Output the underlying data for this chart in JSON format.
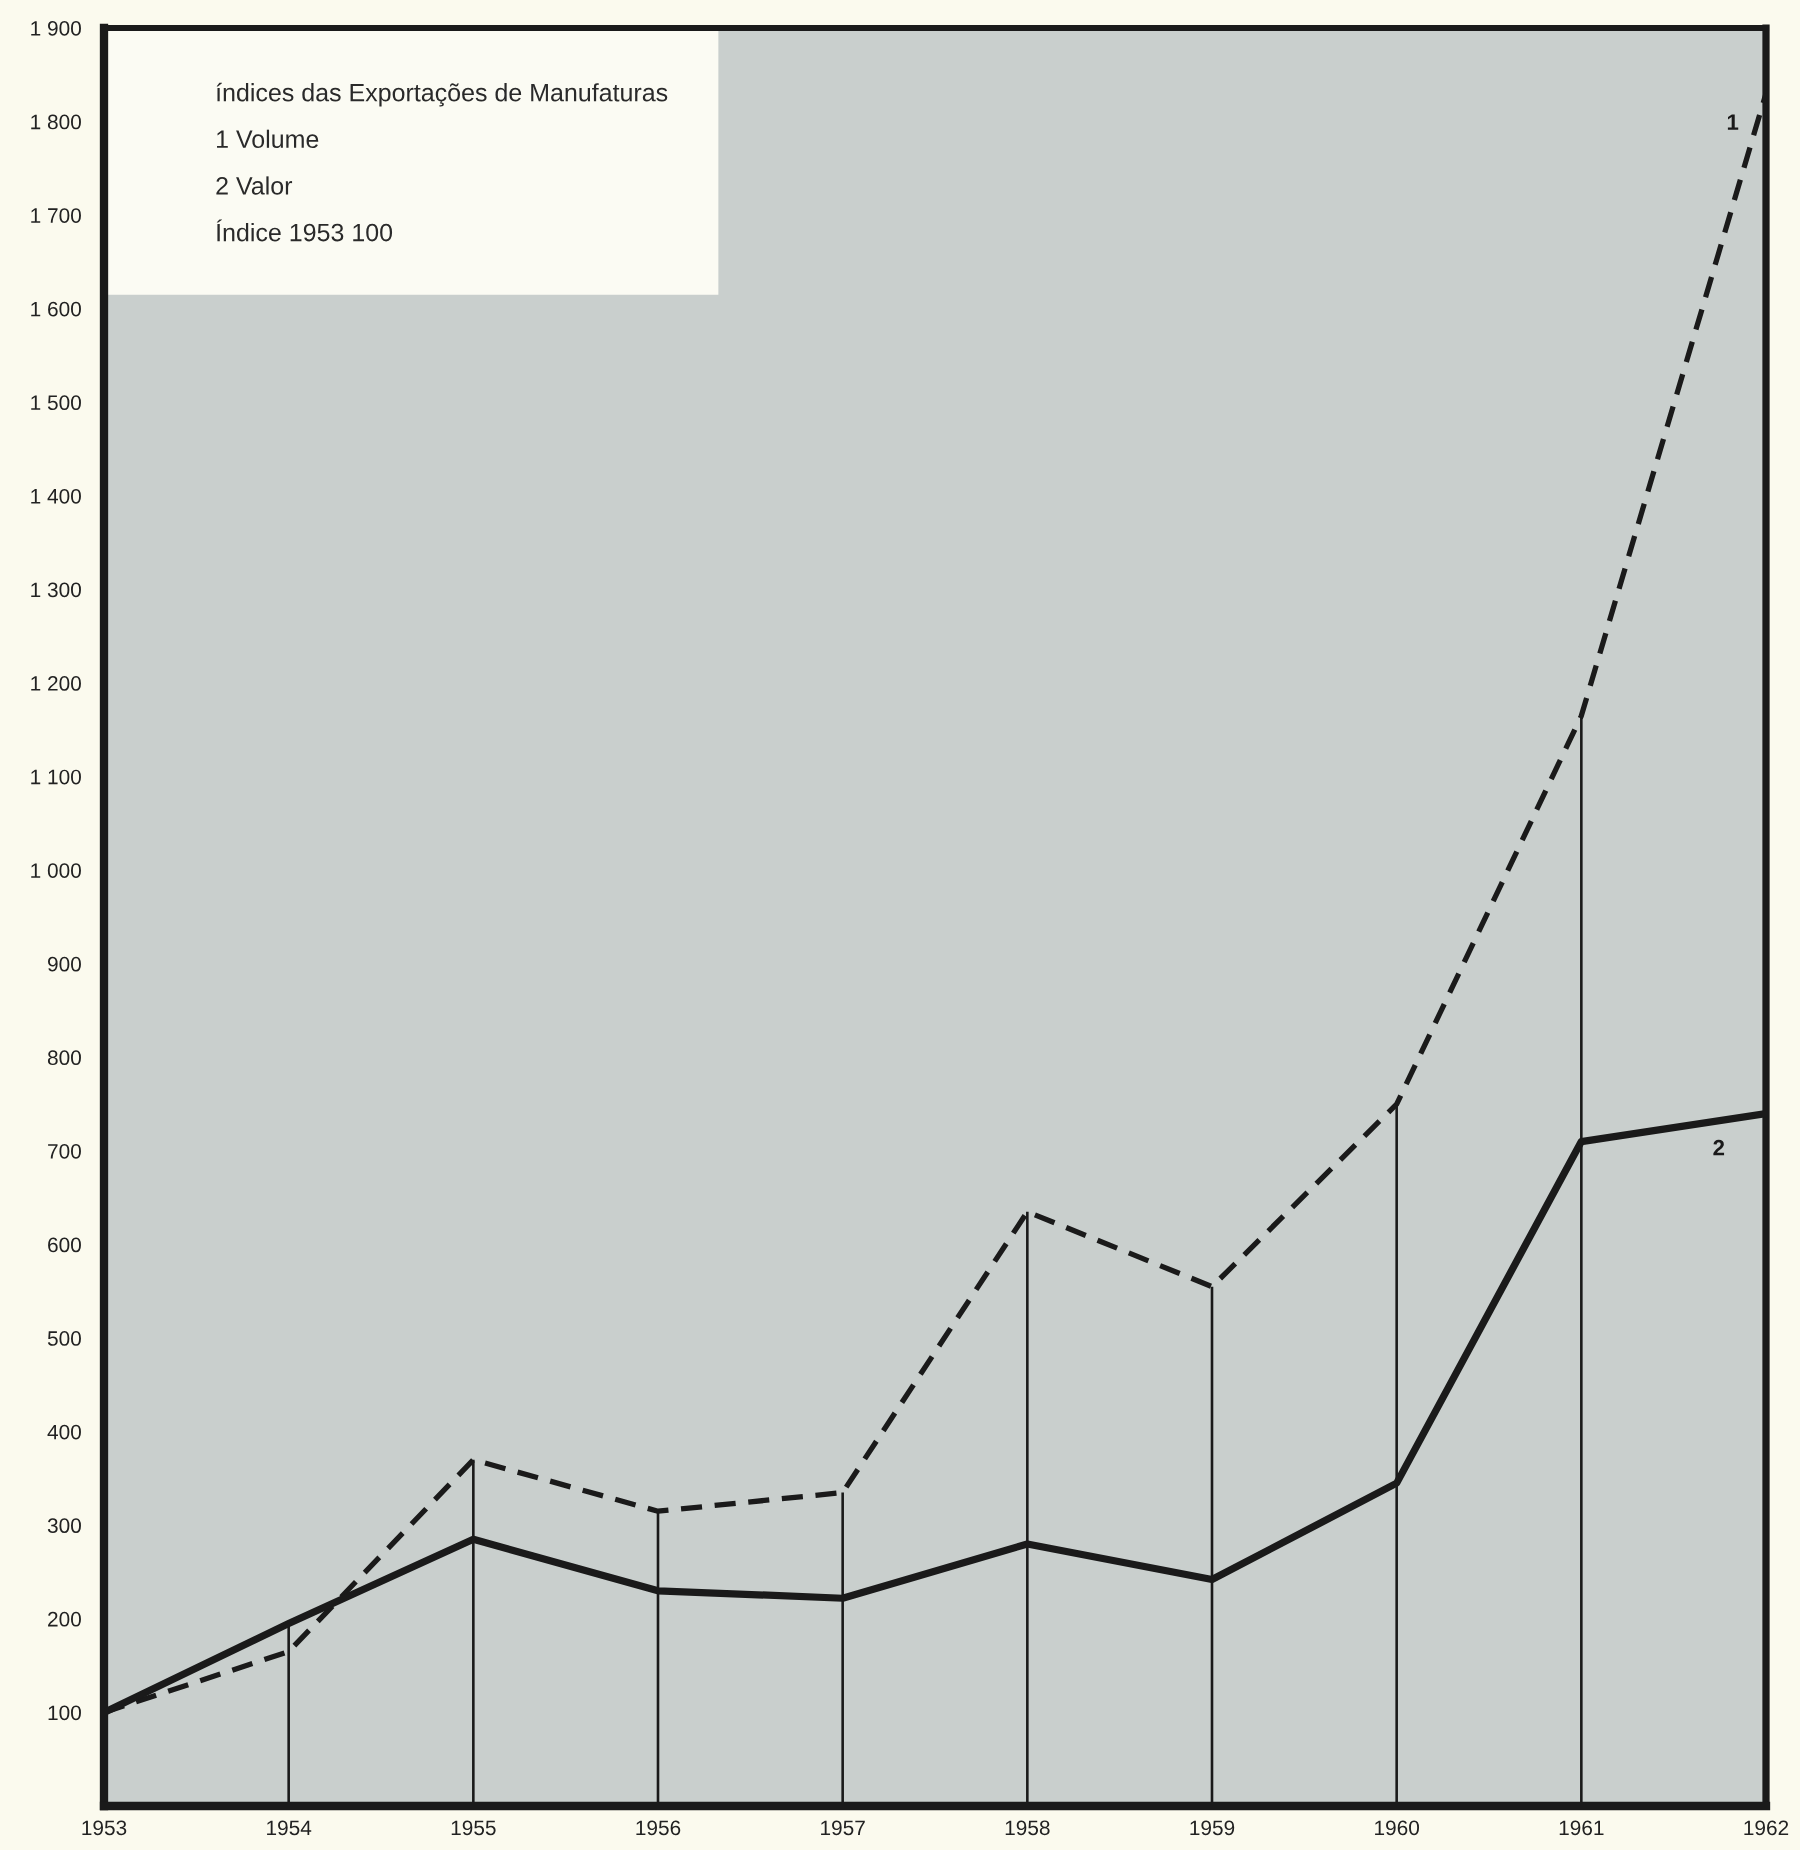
{
  "chart_data": {
    "type": "line",
    "x": [
      1953,
      1954,
      1955,
      1956,
      1957,
      1958,
      1959,
      1960,
      1961,
      1962
    ],
    "series": [
      {
        "name": "1",
        "color": "#1a1a1a",
        "line_style": "dashed",
        "values": [
          100,
          165,
          370,
          315,
          335,
          635,
          555,
          750,
          1165,
          1830
        ]
      },
      {
        "name": "2",
        "color": "#1a1a1a",
        "line_style": "solid",
        "values": [
          100,
          195,
          285,
          230,
          222,
          280,
          242,
          345,
          710,
          740
        ]
      },
      {
        "type": "bar",
        "color": "#1a1a1a",
        "x": [
          1954,
          1955,
          1956,
          1957,
          1958,
          1959,
          1960,
          1961
        ],
        "values": [
          195,
          370,
          315,
          335,
          635,
          555,
          750,
          1165
        ]
      }
    ],
    "xlim": [
      1953,
      1962
    ],
    "xticks": [
      1953,
      1954,
      1955,
      1956,
      1957,
      1958,
      1959,
      1960,
      1961,
      1962
    ],
    "ylim": [
      0,
      1900
    ],
    "yticks": [
      100,
      200,
      300,
      400,
      500,
      600,
      700,
      800,
      900,
      {
        "value": 1000,
        "label": "1 000"
      },
      {
        "value": 1100,
        "label": "1 100"
      },
      {
        "value": 1200,
        "label": "1 200"
      },
      {
        "value": 1300,
        "label": "1 300"
      },
      {
        "value": 1400,
        "label": "1 400"
      },
      {
        "value": 1500,
        "label": "1 500"
      },
      {
        "value": 1600,
        "label": "1 600"
      },
      {
        "value": 1700,
        "label": "1 700"
      },
      {
        "value": 1800,
        "label": "1 800"
      },
      {
        "value": 1900,
        "label": "1 900"
      }
    ],
    "marker": "none",
    "annotations": [
      "índices das Exportações de Manufaturas",
      "1 Volume",
      "2 Valor",
      "Índice 1953 100"
    ]
  }
}
